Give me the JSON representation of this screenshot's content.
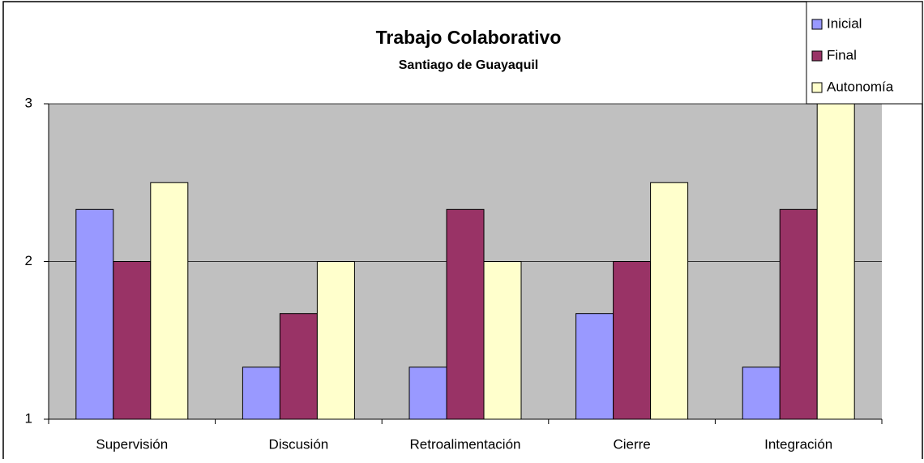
{
  "chart_data": {
    "type": "bar",
    "title": "Trabajo Colaborativo",
    "subtitle": "Santiago de Guayaquil",
    "categories": [
      "Supervisión",
      "Discusión",
      "Retroalimentación",
      "Cierre",
      "Integración"
    ],
    "series": [
      {
        "name": "Inicial",
        "color": "#9999ff",
        "values": [
          2.33,
          1.33,
          1.33,
          1.67,
          1.33
        ]
      },
      {
        "name": "Final",
        "color": "#993366",
        "values": [
          2,
          1.67,
          2.33,
          2,
          2.33
        ]
      },
      {
        "name": "Autonomía",
        "color": "#ffffcc",
        "values": [
          2.5,
          2,
          2,
          2.5,
          3
        ]
      }
    ],
    "ylim": [
      1,
      3
    ],
    "yticks": [
      1,
      2,
      3
    ],
    "grid": true,
    "legend": "top-right"
  }
}
